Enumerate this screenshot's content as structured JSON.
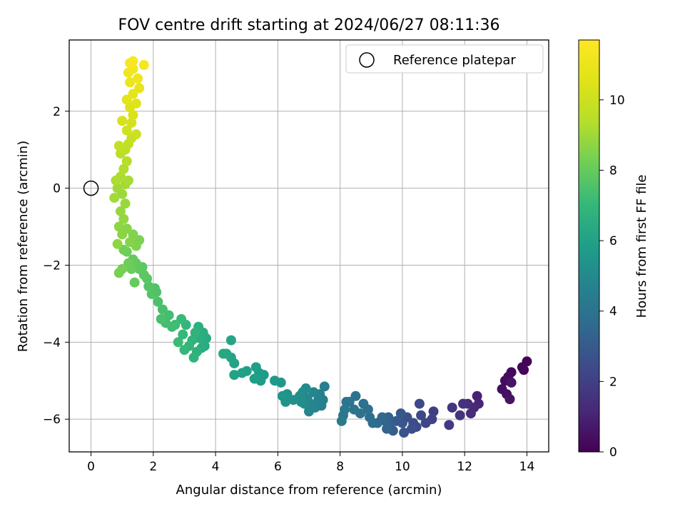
{
  "chart_data": {
    "type": "scatter",
    "title": "FOV centre drift starting at 2024/06/27 08:11:36",
    "xlabel": "Angular distance from reference (arcmin)",
    "ylabel": "Rotation from reference (arcmin)",
    "xlim": [
      -0.7,
      14.7
    ],
    "ylim": [
      -6.85,
      3.85
    ],
    "xticks": [
      0,
      2,
      4,
      6,
      8,
      10,
      12,
      14
    ],
    "yticks": [
      -6,
      -4,
      -2,
      0,
      2
    ],
    "grid": true,
    "legend": {
      "position": "top-right",
      "entries": [
        "Reference platepar"
      ]
    },
    "reference_point": {
      "x": 0,
      "y": 0,
      "marker": "open-circle"
    },
    "colorbar": {
      "label": "Hours from first FF file",
      "min": 0,
      "max": 11.7,
      "ticks": [
        0,
        2,
        4,
        6,
        8,
        10
      ],
      "colormap": "viridis"
    },
    "color_variable": "hours",
    "points": [
      [
        14.0,
        -4.5,
        0.05
      ],
      [
        13.9,
        -4.72,
        0.1
      ],
      [
        13.85,
        -4.65,
        0.15
      ],
      [
        13.5,
        -4.78,
        0.25
      ],
      [
        13.4,
        -4.9,
        0.3
      ],
      [
        13.3,
        -5.0,
        0.35
      ],
      [
        13.2,
        -5.22,
        0.4
      ],
      [
        13.35,
        -5.35,
        0.45
      ],
      [
        13.45,
        -5.48,
        0.55
      ],
      [
        13.5,
        -5.05,
        0.6
      ],
      [
        12.4,
        -5.4,
        1.0
      ],
      [
        12.45,
        -5.6,
        1.1
      ],
      [
        12.3,
        -5.7,
        1.2
      ],
      [
        12.2,
        -5.85,
        1.3
      ],
      [
        12.1,
        -5.6,
        1.4
      ],
      [
        11.95,
        -5.6,
        1.5
      ],
      [
        11.85,
        -5.9,
        1.6
      ],
      [
        11.6,
        -5.7,
        1.7
      ],
      [
        11.5,
        -6.15,
        1.8
      ],
      [
        11.0,
        -5.8,
        2.0
      ],
      [
        10.95,
        -6.0,
        2.1
      ],
      [
        10.75,
        -6.1,
        2.2
      ],
      [
        10.6,
        -5.9,
        2.3
      ],
      [
        10.55,
        -5.6,
        2.35
      ],
      [
        10.45,
        -6.2,
        2.4
      ],
      [
        10.35,
        -6.1,
        2.5
      ],
      [
        10.3,
        -6.25,
        2.55
      ],
      [
        10.15,
        -5.95,
        2.6
      ],
      [
        10.05,
        -6.35,
        2.7
      ],
      [
        10.0,
        -6.1,
        2.8
      ],
      [
        9.95,
        -5.85,
        2.9
      ],
      [
        9.8,
        -6.05,
        3.0
      ],
      [
        9.7,
        -6.3,
        3.1
      ],
      [
        9.6,
        -6.15,
        3.2
      ],
      [
        9.55,
        -5.95,
        3.3
      ],
      [
        9.5,
        -6.25,
        3.35
      ],
      [
        9.45,
        -6.05,
        3.4
      ],
      [
        9.35,
        -5.95,
        3.5
      ],
      [
        9.2,
        -6.1,
        3.6
      ],
      [
        9.05,
        -6.1,
        3.7
      ],
      [
        8.95,
        -5.95,
        3.8
      ],
      [
        8.9,
        -5.75,
        3.85
      ],
      [
        8.75,
        -5.6,
        3.9
      ],
      [
        8.65,
        -5.85,
        3.95
      ],
      [
        8.5,
        -5.4,
        4.0
      ],
      [
        8.45,
        -5.75,
        4.05
      ],
      [
        8.3,
        -5.55,
        4.1
      ],
      [
        8.2,
        -5.55,
        4.15
      ],
      [
        8.15,
        -5.75,
        4.2
      ],
      [
        8.1,
        -5.9,
        4.25
      ],
      [
        8.05,
        -6.05,
        4.3
      ],
      [
        7.5,
        -5.15,
        4.5
      ],
      [
        7.45,
        -5.5,
        4.55
      ],
      [
        7.4,
        -5.65,
        4.6
      ],
      [
        7.35,
        -5.35,
        4.65
      ],
      [
        7.3,
        -5.5,
        4.7
      ],
      [
        7.2,
        -5.7,
        4.75
      ],
      [
        7.15,
        -5.3,
        4.8
      ],
      [
        7.05,
        -5.6,
        4.85
      ],
      [
        7.0,
        -5.8,
        4.9
      ],
      [
        6.95,
        -5.45,
        4.95
      ],
      [
        6.9,
        -5.2,
        5.0
      ],
      [
        6.85,
        -5.6,
        5.05
      ],
      [
        6.8,
        -5.3,
        5.1
      ],
      [
        6.75,
        -5.55,
        5.15
      ],
      [
        6.7,
        -5.4,
        5.2
      ],
      [
        6.5,
        -5.5,
        5.3
      ],
      [
        6.3,
        -5.35,
        5.35
      ],
      [
        6.25,
        -5.55,
        5.4
      ],
      [
        6.15,
        -5.4,
        5.45
      ],
      [
        6.1,
        -5.05,
        5.5
      ],
      [
        5.9,
        -5.0,
        5.6
      ],
      [
        5.55,
        -4.85,
        5.7
      ],
      [
        5.45,
        -5.0,
        5.75
      ],
      [
        5.4,
        -4.8,
        5.8
      ],
      [
        5.3,
        -4.65,
        5.85
      ],
      [
        5.25,
        -4.95,
        5.9
      ],
      [
        5.0,
        -4.75,
        5.95
      ],
      [
        4.85,
        -4.8,
        6.0
      ],
      [
        4.6,
        -4.85,
        6.05
      ],
      [
        4.6,
        -4.55,
        6.1
      ],
      [
        4.5,
        -4.4,
        6.15
      ],
      [
        4.5,
        -3.95,
        6.2
      ],
      [
        4.35,
        -4.3,
        6.25
      ],
      [
        4.25,
        -4.3,
        6.3
      ],
      [
        3.7,
        -3.9,
        6.4
      ],
      [
        3.65,
        -4.1,
        6.45
      ],
      [
        3.6,
        -3.75,
        6.5
      ],
      [
        3.55,
        -4.15,
        6.55
      ],
      [
        3.5,
        -3.9,
        6.6
      ],
      [
        3.45,
        -3.6,
        6.65
      ],
      [
        3.4,
        -4.25,
        6.7
      ],
      [
        3.35,
        -3.75,
        6.75
      ],
      [
        3.3,
        -4.4,
        6.8
      ],
      [
        3.25,
        -3.95,
        6.85
      ],
      [
        3.15,
        -4.1,
        6.9
      ],
      [
        3.05,
        -3.55,
        6.95
      ],
      [
        3.0,
        -4.2,
        7.0
      ],
      [
        2.95,
        -3.8,
        7.05
      ],
      [
        2.9,
        -3.4,
        7.1
      ],
      [
        2.8,
        -4.0,
        7.15
      ],
      [
        2.7,
        -3.55,
        7.2
      ],
      [
        2.6,
        -3.6,
        7.25
      ],
      [
        2.5,
        -3.3,
        7.3
      ],
      [
        2.4,
        -3.5,
        7.35
      ],
      [
        2.3,
        -3.15,
        7.4
      ],
      [
        2.25,
        -3.4,
        7.45
      ],
      [
        2.15,
        -2.95,
        7.5
      ],
      [
        2.1,
        -2.7,
        7.55
      ],
      [
        2.05,
        -2.6,
        7.6
      ],
      [
        1.95,
        -2.75,
        7.65
      ],
      [
        1.85,
        -2.55,
        7.7
      ],
      [
        1.8,
        -2.35,
        7.75
      ],
      [
        1.7,
        -2.25,
        7.8
      ],
      [
        1.65,
        -2.05,
        7.85
      ],
      [
        1.55,
        -2.1,
        7.9
      ],
      [
        1.45,
        -1.95,
        7.95
      ],
      [
        1.35,
        -1.85,
        8.0
      ],
      [
        1.4,
        -2.45,
        8.05
      ],
      [
        1.3,
        -2.1,
        8.1
      ],
      [
        1.2,
        -1.95,
        8.15
      ],
      [
        1.15,
        -1.65,
        8.2
      ],
      [
        1.05,
        -1.6,
        8.25
      ],
      [
        1.0,
        -2.1,
        8.3
      ],
      [
        0.9,
        -2.2,
        8.35
      ],
      [
        1.55,
        -1.35,
        8.4
      ],
      [
        1.45,
        -1.5,
        8.45
      ],
      [
        1.35,
        -1.2,
        8.5
      ],
      [
        1.25,
        -1.4,
        8.55
      ],
      [
        1.15,
        -1.05,
        8.6
      ],
      [
        1.0,
        -1.2,
        8.65
      ],
      [
        0.9,
        -1.0,
        8.7
      ],
      [
        0.85,
        -1.45,
        8.75
      ],
      [
        1.05,
        -0.8,
        8.8
      ],
      [
        0.95,
        -0.6,
        8.85
      ],
      [
        1.1,
        -0.4,
        8.9
      ],
      [
        1.0,
        -0.15,
        8.95
      ],
      [
        0.85,
        0.0,
        9.0
      ],
      [
        0.75,
        -0.25,
        9.05
      ],
      [
        1.1,
        0.1,
        9.1
      ],
      [
        1.2,
        0.2,
        9.15
      ],
      [
        0.95,
        0.3,
        9.2
      ],
      [
        0.8,
        0.2,
        9.25
      ],
      [
        1.05,
        0.5,
        9.3
      ],
      [
        1.15,
        0.7,
        9.4
      ],
      [
        0.95,
        0.9,
        9.5
      ],
      [
        1.1,
        1.0,
        9.6
      ],
      [
        1.2,
        1.15,
        9.7
      ],
      [
        0.9,
        1.1,
        9.8
      ],
      [
        1.3,
        1.3,
        9.9
      ],
      [
        1.45,
        1.4,
        10.0
      ],
      [
        1.15,
        1.5,
        10.1
      ],
      [
        1.3,
        1.7,
        10.2
      ],
      [
        1.0,
        1.75,
        10.3
      ],
      [
        1.35,
        1.9,
        10.4
      ],
      [
        1.25,
        2.1,
        10.5
      ],
      [
        1.45,
        2.2,
        10.6
      ],
      [
        1.15,
        2.3,
        10.7
      ],
      [
        1.35,
        2.45,
        10.8
      ],
      [
        1.55,
        2.6,
        10.9
      ],
      [
        1.25,
        2.75,
        11.0
      ],
      [
        1.5,
        2.85,
        11.1
      ],
      [
        1.2,
        3.0,
        11.2
      ],
      [
        1.35,
        3.1,
        11.3
      ],
      [
        1.7,
        3.2,
        11.4
      ],
      [
        1.25,
        3.25,
        11.5
      ],
      [
        1.35,
        3.3,
        11.6
      ]
    ]
  }
}
